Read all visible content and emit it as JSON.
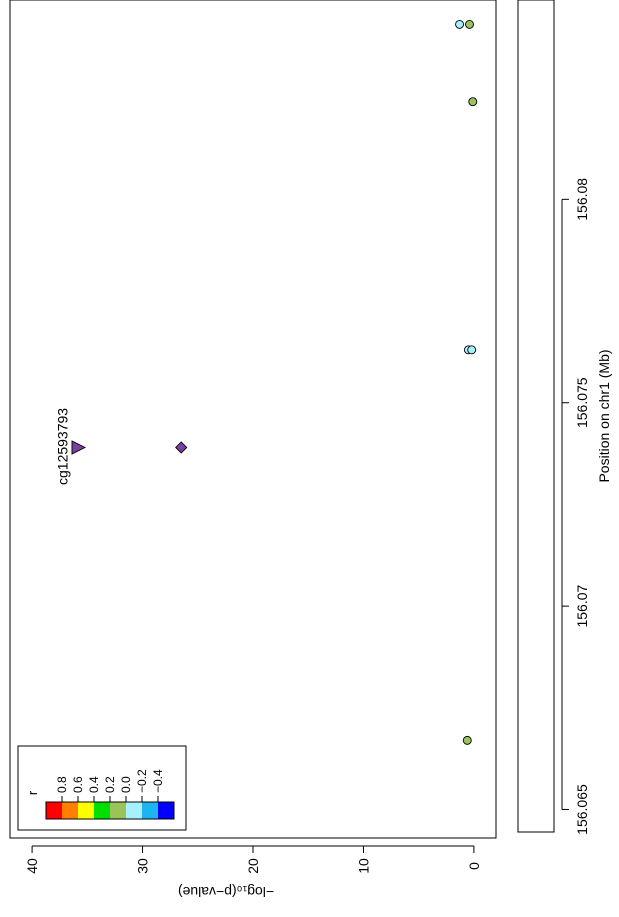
{
  "chart_data": {
    "type": "scatter",
    "orientation": "rotated-90-ccw",
    "xlabel": "Position on chr1 (Mb)",
    "ylabel": "−log₁₀(p−value)",
    "xlim": [
      156.0643,
      156.0849
    ],
    "ylim": [
      -2,
      42
    ],
    "x_ticks": [
      156.065,
      156.07,
      156.075,
      156.08
    ],
    "x_tick_labels": [
      "156.065",
      "156.07",
      "156.075",
      "156.08"
    ],
    "y_ticks": [
      0,
      10,
      20,
      30,
      40
    ],
    "y_tick_labels": [
      "0",
      "10",
      "20",
      "30",
      "40"
    ],
    "grid": false,
    "legend": {
      "title": "r",
      "placement": "bottom-left",
      "bins": [
        {
          "color": "#ff0000"
        },
        {
          "color": "#ff8000"
        },
        {
          "color": "#ffff00"
        },
        {
          "color": "#00e000"
        },
        {
          "color": "#9ac35a"
        },
        {
          "color": "#a6f0ff"
        },
        {
          "color": "#1eb4f0"
        },
        {
          "color": "#0000ff"
        }
      ],
      "tick_labels": [
        "0.8",
        "0.6",
        "0.4",
        "0.2",
        "0.0",
        "−0.2",
        "−0.4"
      ]
    },
    "points": [
      {
        "x": 156.0667,
        "y": 0.6,
        "color": "#9ac35a",
        "shape": "circle"
      },
      {
        "x": 156.0739,
        "y": 35.8,
        "color": "#7b3fa0",
        "shape": "triangle",
        "label": "cg12593793"
      },
      {
        "x": 156.0739,
        "y": 26.5,
        "color": "#7b3fa0",
        "shape": "diamond"
      },
      {
        "x": 156.0763,
        "y": 0.5,
        "color": "#a6f0ff",
        "shape": "circle"
      },
      {
        "x": 156.0763,
        "y": 0.2,
        "color": "#a6f0ff",
        "shape": "circle"
      },
      {
        "x": 156.0824,
        "y": 0.1,
        "color": "#9ac35a",
        "shape": "circle"
      },
      {
        "x": 156.0843,
        "y": 1.3,
        "color": "#a6f0ff",
        "shape": "circle"
      },
      {
        "x": 156.0843,
        "y": 0.4,
        "color": "#9ac35a",
        "shape": "circle"
      }
    ]
  }
}
